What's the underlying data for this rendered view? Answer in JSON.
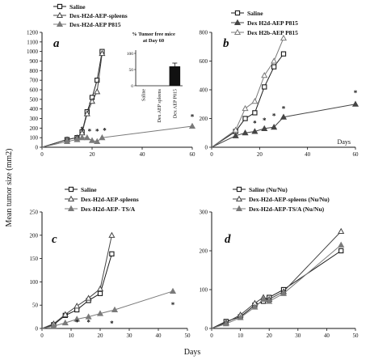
{
  "figure": {
    "shared_ylabel": "Mean tumor size (mm2)",
    "shared_xlabel": "Days",
    "star": "*"
  },
  "chart_data": [
    {
      "panel": "a",
      "type": "line",
      "xlim": [
        0,
        60
      ],
      "ylim": [
        0,
        1200
      ],
      "xticks": [
        0,
        20,
        40,
        60
      ],
      "yticks": [
        0,
        100,
        200,
        300,
        400,
        500,
        600,
        700,
        800,
        900,
        1000,
        1100,
        1200
      ],
      "xlabel": "",
      "series": [
        {
          "name": "Saline",
          "marker": "square",
          "x": [
            0,
            10,
            14,
            16,
            18,
            20,
            22,
            24
          ],
          "y": [
            0,
            80,
            100,
            160,
            370,
            520,
            700,
            1000
          ]
        },
        {
          "name": "Dex-H2d-AEP-spleens",
          "marker": "tri-open",
          "x": [
            0,
            10,
            14,
            16,
            18,
            20,
            22,
            24
          ],
          "y": [
            0,
            80,
            100,
            150,
            350,
            480,
            580,
            980
          ]
        },
        {
          "name": "Dex-H2d-AEP P815",
          "marker": "tri-filled",
          "x": [
            0,
            10,
            14,
            16,
            18,
            20,
            22,
            24,
            60
          ],
          "y": [
            0,
            60,
            80,
            100,
            100,
            70,
            60,
            100,
            220
          ]
        }
      ],
      "stars": [
        [
          16,
          160
        ],
        [
          19,
          140
        ],
        [
          22,
          140
        ],
        [
          25,
          150
        ],
        [
          60,
          290
        ]
      ],
      "inset": {
        "title_lines": [
          "% Tumor free mice",
          "at Day 60"
        ],
        "yticks": [
          0,
          50,
          100
        ],
        "ylim": [
          0,
          100
        ],
        "categories": [
          "Saline",
          "Dex AEP spleens",
          "Dex AEP P815"
        ],
        "values": [
          0,
          0,
          60
        ],
        "error": [
          0,
          0,
          10
        ]
      }
    },
    {
      "panel": "b",
      "type": "line",
      "xlim": [
        0,
        60
      ],
      "ylim": [
        0,
        800
      ],
      "xticks": [
        0,
        20,
        40,
        60
      ],
      "yticks": [
        0,
        200,
        400,
        600,
        800
      ],
      "xlabel": "Days",
      "series": [
        {
          "name": "Saline",
          "marker": "square",
          "x": [
            0,
            10,
            14,
            18,
            22,
            26,
            30
          ],
          "y": [
            0,
            110,
            200,
            240,
            420,
            560,
            650
          ]
        },
        {
          "name": "Dex H2d-AEP P815",
          "marker": "tri-filled",
          "x": [
            0,
            10,
            14,
            18,
            22,
            26,
            30,
            60
          ],
          "y": [
            0,
            80,
            100,
            110,
            130,
            140,
            210,
            300
          ]
        },
        {
          "name": "Dex H2b-AEP P815",
          "marker": "tri-open",
          "x": [
            0,
            10,
            14,
            18,
            22,
            26,
            30
          ],
          "y": [
            0,
            120,
            270,
            320,
            500,
            600,
            760
          ]
        }
      ],
      "stars": [
        [
          18,
          150
        ],
        [
          22,
          170
        ],
        [
          26,
          200
        ],
        [
          30,
          250
        ],
        [
          60,
          360
        ]
      ]
    },
    {
      "panel": "c",
      "type": "line",
      "xlim": [
        0,
        50
      ],
      "ylim": [
        0,
        250
      ],
      "xticks": [
        0,
        10,
        20,
        30,
        40,
        50
      ],
      "yticks": [
        0,
        50,
        100,
        150,
        200,
        250
      ],
      "xlabel": "",
      "series": [
        {
          "name": "Saline",
          "marker": "square",
          "x": [
            0,
            4,
            8,
            12,
            16,
            20,
            24
          ],
          "y": [
            0,
            8,
            28,
            40,
            60,
            75,
            160
          ]
        },
        {
          "name": "Dex-H2d-AEP-spleens",
          "marker": "tri-open",
          "x": [
            0,
            4,
            8,
            12,
            16,
            20,
            24
          ],
          "y": [
            0,
            10,
            30,
            48,
            65,
            85,
            200
          ]
        },
        {
          "name": "Dex-H2d-AEP- TS/A",
          "marker": "tri-filled",
          "x": [
            0,
            4,
            8,
            12,
            16,
            20,
            25,
            45
          ],
          "y": [
            0,
            5,
            12,
            20,
            25,
            32,
            40,
            80
          ]
        }
      ],
      "stars": [
        [
          12,
          8
        ],
        [
          16,
          8
        ],
        [
          24,
          5
        ],
        [
          45,
          45
        ]
      ]
    },
    {
      "panel": "d",
      "type": "line",
      "xlim": [
        0,
        50
      ],
      "ylim": [
        0,
        300
      ],
      "xticks": [
        0,
        10,
        20,
        30,
        40,
        50
      ],
      "yticks": [
        0,
        100,
        200,
        300
      ],
      "xlabel": "",
      "series": [
        {
          "name": "Saline (Nu/Nu)",
          "marker": "square",
          "x": [
            0,
            5,
            10,
            15,
            18,
            20,
            25,
            45
          ],
          "y": [
            0,
            18,
            30,
            60,
            70,
            80,
            100,
            200
          ]
        },
        {
          "name": "Dex-H2d-AEP-spleens (Nu/Nu)",
          "marker": "tri-open",
          "x": [
            0,
            5,
            10,
            15,
            18,
            20,
            25,
            45
          ],
          "y": [
            0,
            15,
            35,
            65,
            80,
            75,
            95,
            250
          ]
        },
        {
          "name": "Dex-H2d-AEP-TS/A (Nu/Nu)",
          "marker": "tri-filled",
          "x": [
            0,
            5,
            10,
            15,
            18,
            20,
            25,
            45
          ],
          "y": [
            0,
            12,
            28,
            55,
            75,
            70,
            90,
            215
          ]
        }
      ],
      "stars": []
    }
  ],
  "colors": {
    "saline": "#1a1a1a",
    "spleens": "#444444",
    "aep": "#7a7a7a",
    "inset_bar": "#111111",
    "axis": "#111111"
  }
}
